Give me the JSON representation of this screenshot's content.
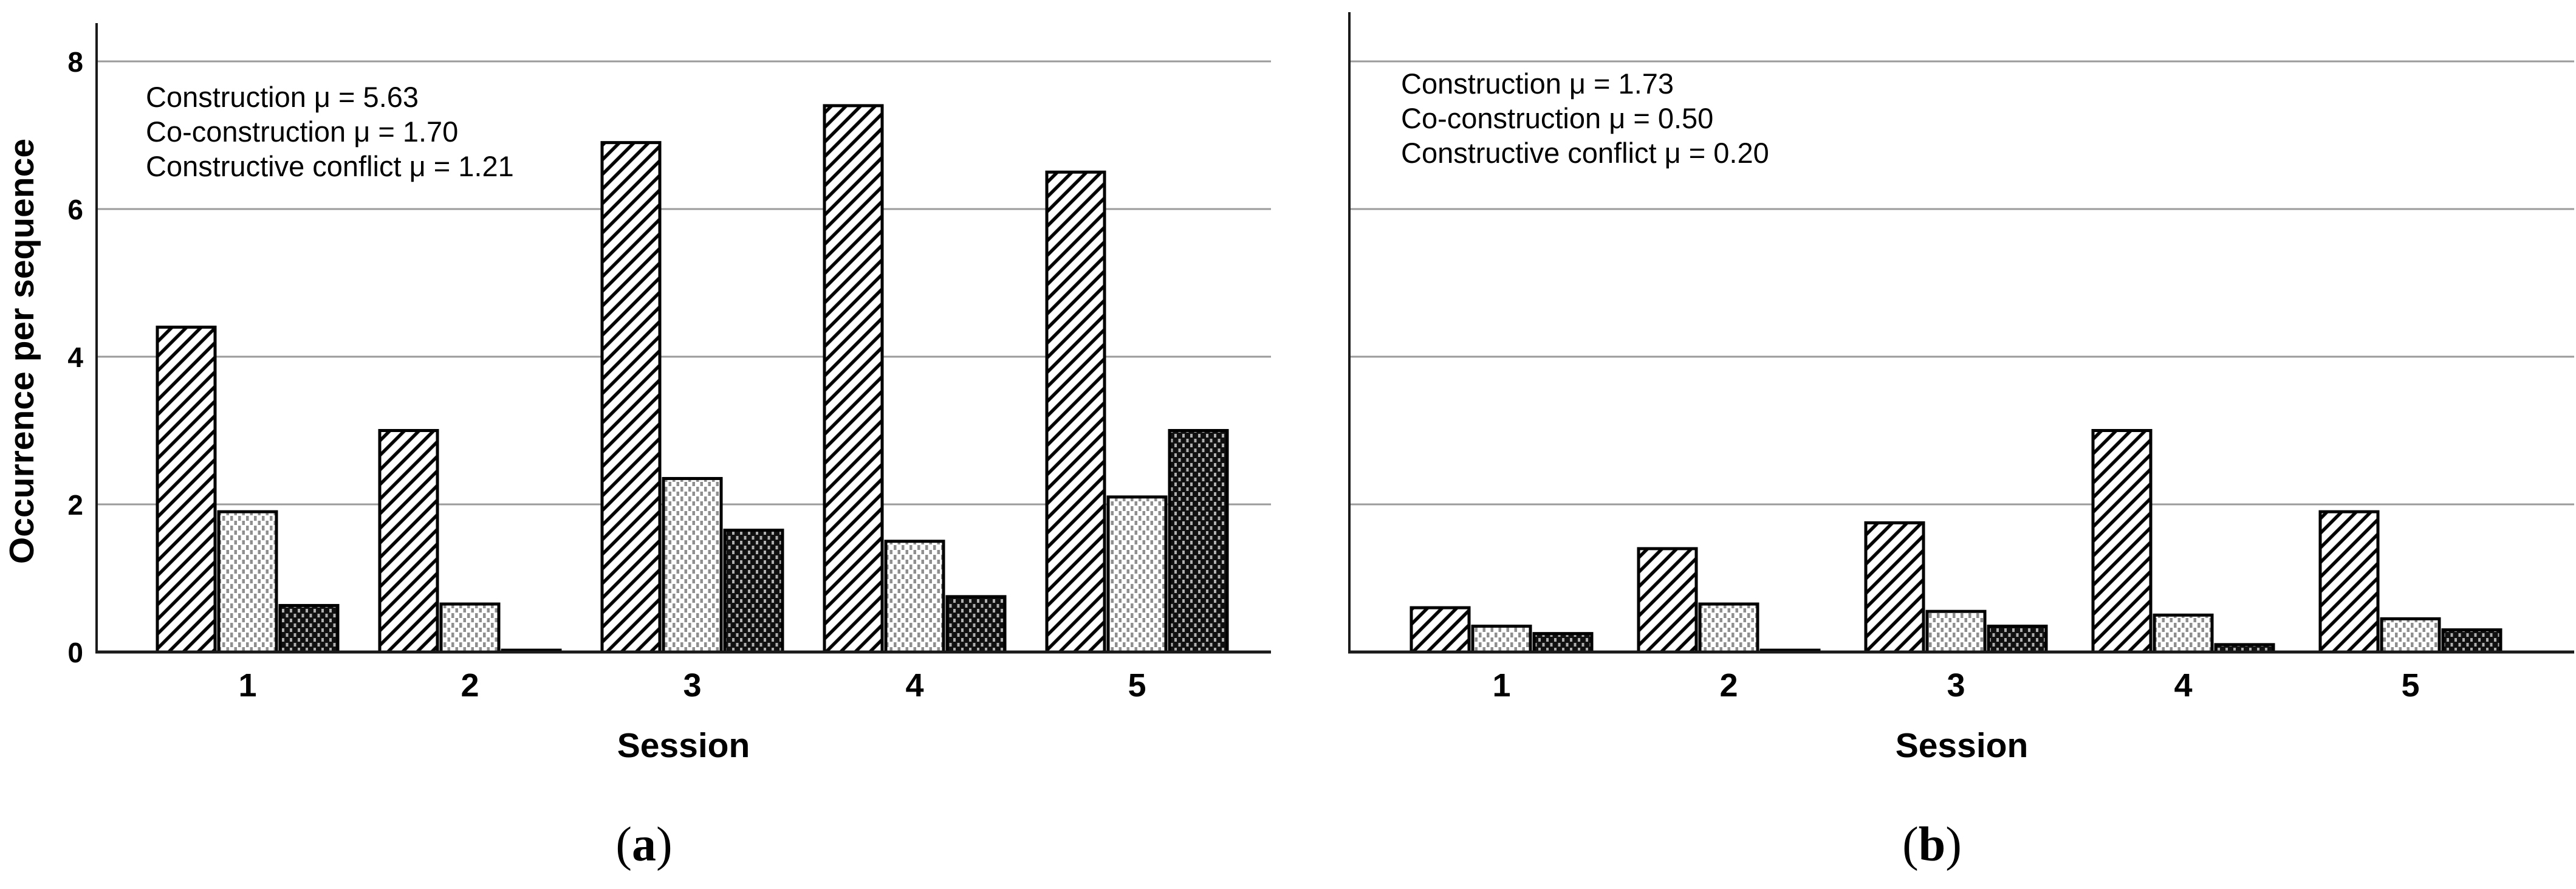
{
  "figure": {
    "captions": [
      {
        "open": "(",
        "letter": "a",
        "close": ")"
      },
      {
        "open": "(",
        "letter": "b",
        "close": ")"
      }
    ]
  },
  "colors": {
    "bg": "#ffffff",
    "text": "#000000",
    "axis": "#1a1a1a",
    "gridline": "#9b9b9b",
    "bar_outline": "#000000",
    "pattern_gray": "#8f8f8f",
    "dark_fill": "#111111",
    "dark_dot": "#b0b0b0"
  },
  "chart_data": [
    {
      "type": "bar",
      "panel": "a",
      "title": "",
      "annotations": [
        "Construction μ = 5.63",
        "Co-construction μ = 1.70",
        "Constructive conflict μ = 1.21"
      ],
      "means": {
        "construction": 5.63,
        "co_construction": 1.7,
        "constructive_conflict": 1.21
      },
      "categories": [
        "1",
        "2",
        "3",
        "4",
        "5"
      ],
      "series": [
        {
          "name": "Construction",
          "pattern": "diagonal-hatch",
          "values": [
            4.4,
            3.0,
            6.9,
            7.4,
            6.5
          ]
        },
        {
          "name": "Co-construction",
          "pattern": "light-dots",
          "values": [
            1.9,
            0.65,
            2.35,
            1.5,
            2.1
          ]
        },
        {
          "name": "Constructive conflict",
          "pattern": "dark-dots",
          "values": [
            0.63,
            0.02,
            1.65,
            0.75,
            3.0
          ]
        }
      ],
      "xlabel": "Session",
      "ylabel": "Occurrence per sequence",
      "ylim": [
        0,
        8.5
      ],
      "yticks": [
        0,
        2,
        4,
        6,
        8
      ],
      "show_ytick_labels": true,
      "grid": "horizontal",
      "legend": "none"
    },
    {
      "type": "bar",
      "panel": "b",
      "title": "",
      "annotations": [
        "Construction μ = 1.73",
        "Co-construction μ = 0.50",
        "Constructive conflict μ = 0.20"
      ],
      "means": {
        "construction": 1.73,
        "co_construction": 0.5,
        "constructive_conflict": 0.2
      },
      "categories": [
        "1",
        "2",
        "3",
        "4",
        "5"
      ],
      "series": [
        {
          "name": "Construction",
          "pattern": "diagonal-hatch",
          "values": [
            0.6,
            1.4,
            1.75,
            3.0,
            1.9
          ]
        },
        {
          "name": "Co-construction",
          "pattern": "light-dots",
          "values": [
            0.35,
            0.65,
            0.55,
            0.5,
            0.45
          ]
        },
        {
          "name": "Constructive conflict",
          "pattern": "dark-dots",
          "values": [
            0.25,
            0.0,
            0.35,
            0.1,
            0.3
          ]
        }
      ],
      "xlabel": "Session",
      "ylabel": "",
      "ylim": [
        0,
        8.5
      ],
      "yticks": [
        0,
        2,
        4,
        6,
        8
      ],
      "show_ytick_labels": false,
      "grid": "horizontal",
      "legend": "none"
    }
  ]
}
